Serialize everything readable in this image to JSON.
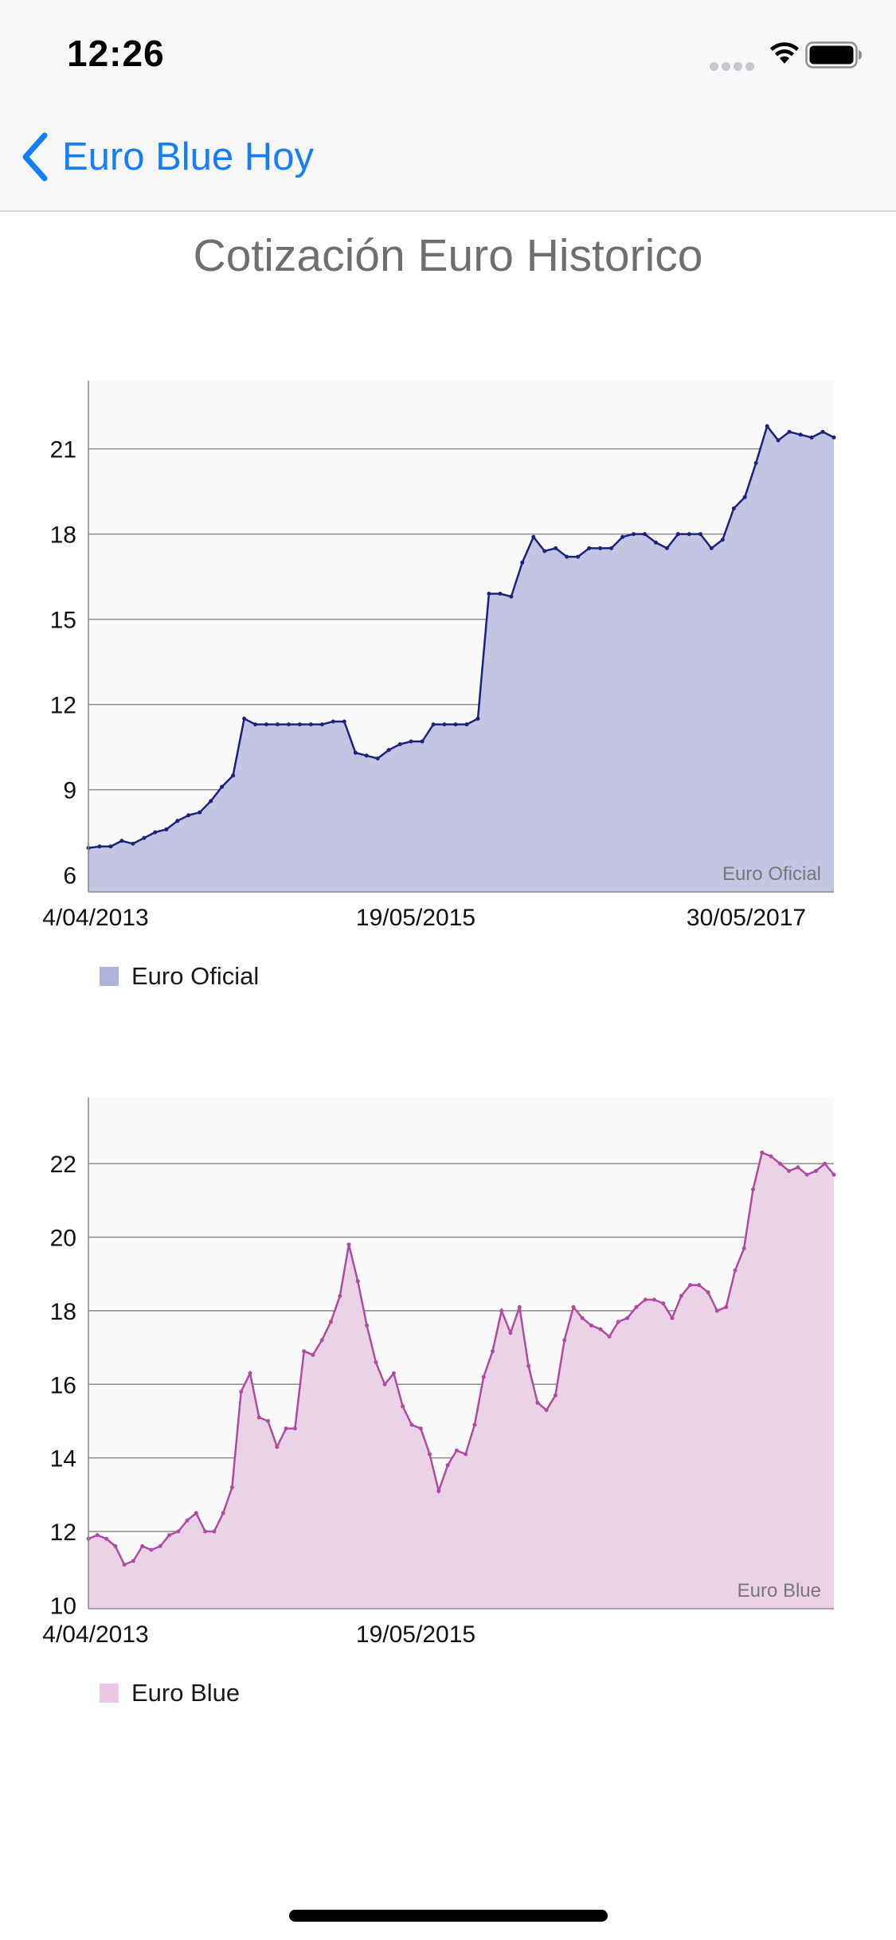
{
  "status_bar": {
    "time": "12:26"
  },
  "nav": {
    "back_label": "Euro Blue Hoy"
  },
  "page": {
    "title": "Cotización Euro Historico"
  },
  "chart_data": [
    {
      "type": "area",
      "series": [
        {
          "name": "Euro Oficial",
          "color": "#1a237e",
          "fill": "#c3c5e3",
          "values": [
            6.95,
            7.0,
            7.0,
            7.2,
            7.1,
            7.3,
            7.5,
            7.6,
            7.9,
            8.1,
            8.2,
            8.6,
            9.1,
            9.5,
            11.5,
            11.3,
            11.3,
            11.3,
            11.3,
            11.3,
            11.3,
            11.3,
            11.4,
            11.4,
            10.3,
            10.2,
            10.1,
            10.4,
            10.6,
            10.7,
            10.7,
            11.3,
            11.3,
            11.3,
            11.3,
            11.5,
            15.9,
            15.9,
            15.8,
            17.0,
            17.9,
            17.4,
            17.5,
            17.2,
            17.2,
            17.5,
            17.5,
            17.5,
            17.9,
            18.0,
            18.0,
            17.7,
            17.5,
            18.0,
            18.0,
            18.0,
            17.5,
            17.8,
            18.9,
            19.3,
            20.5,
            21.8,
            21.3,
            21.6,
            21.5,
            21.4,
            21.6,
            21.4
          ]
        }
      ],
      "xlabels": [
        "4/04/2013",
        "19/05/2015",
        "30/05/2017"
      ],
      "yticks": [
        6,
        9,
        12,
        15,
        18,
        21
      ],
      "ylim": [
        5.4,
        23.4
      ],
      "watermark": "Euro Oficial",
      "legend": "Euro Oficial",
      "grid": "horizontal"
    },
    {
      "type": "area",
      "series": [
        {
          "name": "Euro Blue",
          "color": "#b04aa4",
          "fill": "#ebd3e7",
          "values": [
            11.8,
            11.9,
            11.8,
            11.6,
            11.1,
            11.2,
            11.6,
            11.5,
            11.6,
            11.9,
            12.0,
            12.3,
            12.5,
            12.0,
            12.0,
            12.5,
            13.2,
            15.8,
            16.3,
            15.1,
            15.0,
            14.3,
            14.8,
            14.8,
            16.9,
            16.8,
            17.2,
            17.7,
            18.4,
            19.8,
            18.8,
            17.6,
            16.6,
            16.0,
            16.3,
            15.4,
            14.9,
            14.8,
            14.1,
            13.1,
            13.8,
            14.2,
            14.1,
            14.9,
            16.2,
            16.9,
            18.0,
            17.4,
            18.1,
            16.5,
            15.5,
            15.3,
            15.7,
            17.2,
            18.1,
            17.8,
            17.6,
            17.5,
            17.3,
            17.7,
            17.8,
            18.1,
            18.3,
            18.3,
            18.2,
            17.8,
            18.4,
            18.7,
            18.7,
            18.5,
            18.0,
            18.1,
            19.1,
            19.7,
            21.3,
            22.3,
            22.2,
            22.0,
            21.8,
            21.9,
            21.7,
            21.8,
            22.0,
            21.7
          ]
        }
      ],
      "xlabels": [
        "4/04/2013",
        "19/05/2015"
      ],
      "yticks": [
        10,
        12,
        14,
        16,
        18,
        20,
        22
      ],
      "ylim": [
        9.9,
        23.8
      ],
      "watermark": "Euro Blue",
      "legend": "Euro Blue",
      "grid": "horizontal"
    }
  ]
}
